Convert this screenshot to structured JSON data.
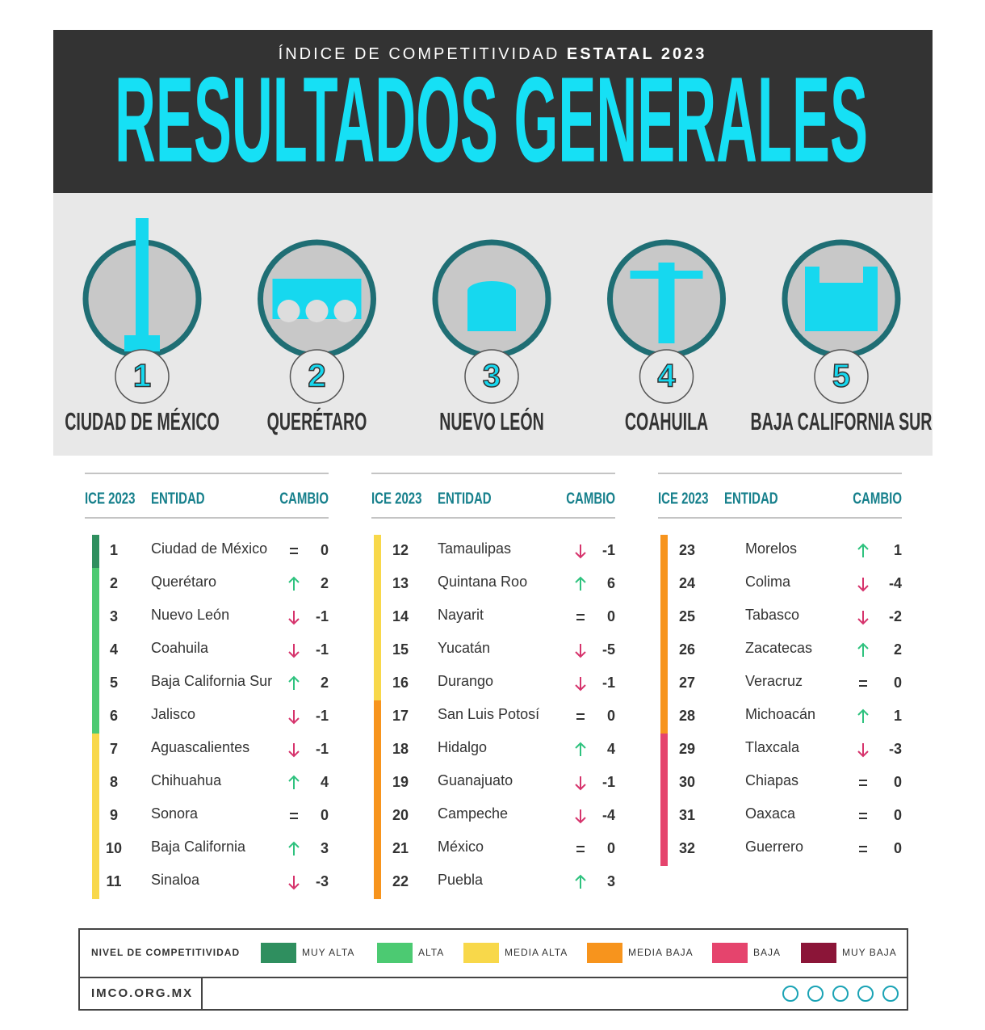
{
  "header": {
    "kicker": "ÍNDICE DE COMPETITIVIDAD",
    "kicker_bold": "ESTATAL 2023",
    "title": "RESULTADOS GENERALES"
  },
  "podium": [
    {
      "rank": 1,
      "name": "CIUDAD DE MÉXICO"
    },
    {
      "rank": 2,
      "name": "QUERÉTARO"
    },
    {
      "rank": 3,
      "name": "NUEVO LEÓN"
    },
    {
      "rank": 4,
      "name": "COAHUILA"
    },
    {
      "rank": 5,
      "name": "BAJA CALIFORNIA SUR"
    }
  ],
  "table": {
    "headers": [
      "ICE 2023",
      "ENTIDAD",
      "CAMBIO"
    ],
    "rows": [
      {
        "rank": 1,
        "entidad": "Ciudad de México",
        "cambio": 0,
        "color": "#2f8f5f"
      },
      {
        "rank": 2,
        "entidad": "Querétaro",
        "cambio": 2,
        "color": "#4cca72"
      },
      {
        "rank": 3,
        "entidad": "Nuevo León",
        "cambio": -1,
        "color": "#4cca72"
      },
      {
        "rank": 4,
        "entidad": "Coahuila",
        "cambio": -1,
        "color": "#4cca72"
      },
      {
        "rank": 5,
        "entidad": "Baja California Sur",
        "cambio": 2,
        "color": "#4cca72"
      },
      {
        "rank": 6,
        "entidad": "Jalisco",
        "cambio": -1,
        "color": "#4cca72"
      },
      {
        "rank": 7,
        "entidad": "Aguascalientes",
        "cambio": -1,
        "color": "#f8d84a"
      },
      {
        "rank": 8,
        "entidad": "Chihuahua",
        "cambio": 4,
        "color": "#f8d84a"
      },
      {
        "rank": 9,
        "entidad": "Sonora",
        "cambio": 0,
        "color": "#f8d84a"
      },
      {
        "rank": 10,
        "entidad": "Baja California",
        "cambio": 3,
        "color": "#f8d84a"
      },
      {
        "rank": 11,
        "entidad": "Sinaloa",
        "cambio": -3,
        "color": "#f8d84a"
      },
      {
        "rank": 12,
        "entidad": "Tamaulipas",
        "cambio": -1,
        "color": "#f8d84a"
      },
      {
        "rank": 13,
        "entidad": "Quintana Roo",
        "cambio": 6,
        "color": "#f8d84a"
      },
      {
        "rank": 14,
        "entidad": "Nayarit",
        "cambio": 0,
        "color": "#f8d84a"
      },
      {
        "rank": 15,
        "entidad": "Yucatán",
        "cambio": -5,
        "color": "#f8d84a"
      },
      {
        "rank": 16,
        "entidad": "Durango",
        "cambio": -1,
        "color": "#f8d84a"
      },
      {
        "rank": 17,
        "entidad": "San Luis Potosí",
        "cambio": 0,
        "color": "#f7941d"
      },
      {
        "rank": 18,
        "entidad": "Hidalgo",
        "cambio": 4,
        "color": "#f7941d"
      },
      {
        "rank": 19,
        "entidad": "Guanajuato",
        "cambio": -1,
        "color": "#f7941d"
      },
      {
        "rank": 20,
        "entidad": "Campeche",
        "cambio": -4,
        "color": "#f7941d"
      },
      {
        "rank": 21,
        "entidad": "México",
        "cambio": 0,
        "color": "#f7941d"
      },
      {
        "rank": 22,
        "entidad": "Puebla",
        "cambio": 3,
        "color": "#f7941d"
      },
      {
        "rank": 23,
        "entidad": "Morelos",
        "cambio": 1,
        "color": "#f7941d"
      },
      {
        "rank": 24,
        "entidad": "Colima",
        "cambio": -4,
        "color": "#f7941d"
      },
      {
        "rank": 25,
        "entidad": "Tabasco",
        "cambio": -2,
        "color": "#f7941d"
      },
      {
        "rank": 26,
        "entidad": "Zacatecas",
        "cambio": 2,
        "color": "#f7941d"
      },
      {
        "rank": 27,
        "entidad": "Veracruz",
        "cambio": 0,
        "color": "#f7941d"
      },
      {
        "rank": 28,
        "entidad": "Michoacán",
        "cambio": 1,
        "color": "#f7941d"
      },
      {
        "rank": 29,
        "entidad": "Tlaxcala",
        "cambio": -3,
        "color": "#e5446d"
      },
      {
        "rank": 30,
        "entidad": "Chiapas",
        "cambio": 0,
        "color": "#e5446d"
      },
      {
        "rank": 31,
        "entidad": "Oaxaca",
        "cambio": 0,
        "color": "#e5446d"
      },
      {
        "rank": 32,
        "entidad": "Guerrero",
        "cambio": 0,
        "color": "#e5446d"
      }
    ]
  },
  "legend": {
    "title": "NIVEL DE COMPETITIVIDAD",
    "items": [
      {
        "name": "MUY ALTA",
        "color": "#2f8f5f"
      },
      {
        "name": "ALTA",
        "color": "#4cca72"
      },
      {
        "name": "MEDIA ALTA",
        "color": "#f8d84a"
      },
      {
        "name": "MEDIA BAJA",
        "color": "#f7941d"
      },
      {
        "name": "BAJA",
        "color": "#e5446d"
      },
      {
        "name": "MUY BAJA",
        "color": "#8b1538"
      }
    ]
  },
  "footer": {
    "site": "IMCO.ORG.MX"
  }
}
